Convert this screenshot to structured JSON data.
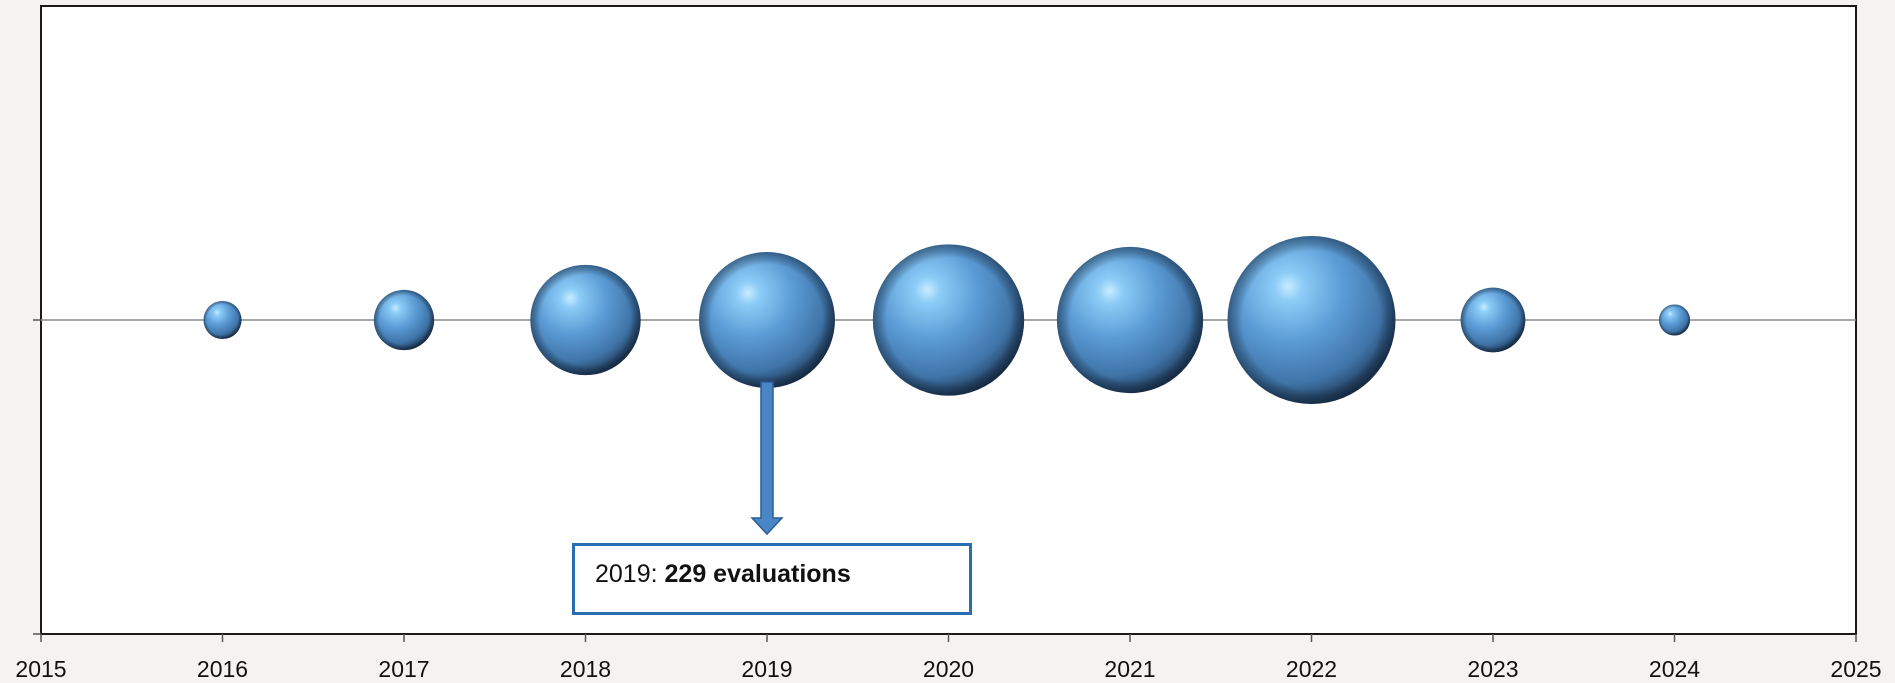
{
  "chart_data": {
    "type": "bubble",
    "title": "",
    "xlabel": "",
    "ylabel": "",
    "xlim": [
      2015,
      2025
    ],
    "x_ticks": [
      "2015",
      "2016",
      "2017",
      "2018",
      "2019",
      "2020",
      "2021",
      "2022",
      "2023",
      "2024",
      "2025"
    ],
    "grid": false,
    "legend": "none",
    "series": [
      {
        "x": [
          2016,
          2017,
          2018,
          2019,
          2020,
          2021,
          2022,
          2023,
          2024
        ],
        "y": [
          0,
          0,
          0,
          0,
          0,
          0,
          0,
          0,
          0
        ],
        "size": [
          18,
          45,
          151,
          229,
          284,
          265,
          350,
          52,
          12
        ]
      }
    ],
    "colors": {
      "bubble": "#5b9bd5",
      "callout_border": "#2a6db0",
      "arrow": "#4a86c6"
    },
    "annotation": {
      "target_x": 2019,
      "label_prefix": "2019: ",
      "label_value": "229 evaluations"
    }
  }
}
